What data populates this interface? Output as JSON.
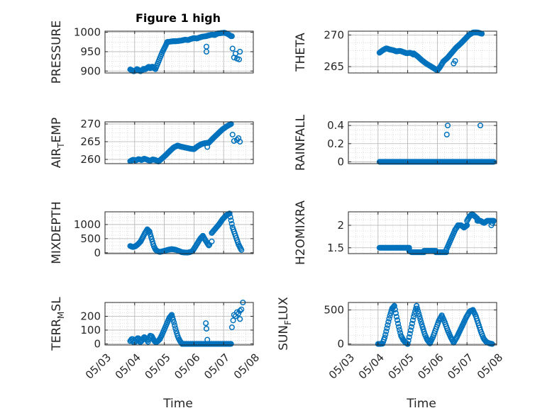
{
  "figure": {
    "title": "Figure 1 high"
  },
  "colors": {
    "marker": "#0072bd",
    "axis": "#262626",
    "grid": "#c8c8c8"
  },
  "chart_data": [
    {
      "type": "scatter",
      "id": "pressure",
      "ylabel": "PRESSURE",
      "ylabel_sub": "",
      "ylim": [
        895,
        1003
      ],
      "yticks": [
        900,
        950,
        1000
      ],
      "xlim": [
        3.0,
        8.0
      ],
      "xticks": [
        3,
        4,
        5,
        6,
        7,
        8
      ],
      "xticklabels": [
        "05/03",
        "05/04",
        "05/05",
        "05/06",
        "05/07",
        "05/08"
      ],
      "grid": true,
      "segments": [
        {
          "x0": 3.85,
          "x1": 4.7,
          "ys": [
            904,
            902,
            899,
            901,
            905,
            903,
            899,
            902,
            906,
            904,
            908,
            911,
            907,
            912,
            908,
            905
          ]
        },
        {
          "x0": 4.7,
          "x1": 5.1,
          "ys": [
            905,
            920,
            935,
            950,
            962,
            975
          ]
        },
        {
          "x0": 5.1,
          "x1": 6.8,
          "ys": [
            975,
            976,
            977,
            977,
            978,
            979,
            981,
            980,
            983,
            985,
            984,
            987,
            989,
            990,
            992,
            994,
            993,
            997
          ]
        },
        {
          "x0": 6.8,
          "x1": 7.25,
          "ys": [
            997,
            998,
            999,
            996,
            990
          ]
        }
      ],
      "points": [
        [
          6.42,
          963
        ],
        [
          6.42,
          950
        ],
        [
          7.3,
          958
        ],
        [
          7.35,
          935
        ],
        [
          7.4,
          945
        ],
        [
          7.45,
          932
        ],
        [
          7.52,
          930
        ],
        [
          7.55,
          950
        ],
        [
          7.28,
          990
        ]
      ]
    },
    {
      "type": "scatter",
      "id": "theta",
      "ylabel": "THETA",
      "ylabel_sub": "",
      "ylim": [
        264,
        270.6
      ],
      "yticks": [
        265,
        270
      ],
      "xlim": [
        3.0,
        8.0
      ],
      "xticks": [
        3,
        4,
        5,
        6,
        7,
        8
      ],
      "xticklabels": [
        "05/03",
        "05/04",
        "05/05",
        "05/06",
        "05/07",
        "05/08"
      ],
      "grid": true,
      "segments": [
        {
          "x0": 4.05,
          "x1": 5.2,
          "ys": [
            267.2,
            267.6,
            267.9,
            267.7,
            267.6,
            267.4,
            267.5,
            267.3,
            267.1,
            267.2,
            266.9
          ]
        },
        {
          "x0": 5.2,
          "x1": 5.9,
          "ys": [
            267.1,
            266.6,
            266.0,
            265.5,
            265.1,
            264.7
          ]
        },
        {
          "x0": 5.9,
          "x1": 6.2,
          "ys": [
            264.7,
            264.4,
            265.0,
            265.8
          ]
        },
        {
          "x0": 6.2,
          "x1": 7.5,
          "ys": [
            265.8,
            266.4,
            267.2,
            268.0,
            268.6,
            269.3,
            270.0,
            270.4,
            270.4,
            270.2
          ]
        }
      ],
      "points": [
        [
          6.55,
          265.5
        ],
        [
          6.6,
          265.9
        ]
      ]
    },
    {
      "type": "scatter",
      "id": "air_temp",
      "ylabel": "AIR",
      "ylabel_sub": "T",
      "ylabel_tail": "EMP",
      "ylim": [
        258.8,
        270.6
      ],
      "yticks": [
        260,
        265,
        270
      ],
      "xlim": [
        3.0,
        8.0
      ],
      "xticks": [
        3,
        4,
        5,
        6,
        7,
        8
      ],
      "xticklabels": [
        "05/03",
        "05/04",
        "05/05",
        "05/06",
        "05/07",
        "05/08"
      ],
      "grid": true,
      "segments": [
        {
          "x0": 3.85,
          "x1": 4.8,
          "ys": [
            259.5,
            259.9,
            259.7,
            260.1,
            259.8,
            260.2,
            259.9,
            259.6,
            260.0,
            259.8,
            259.4
          ]
        },
        {
          "x0": 4.8,
          "x1": 5.45,
          "ys": [
            259.4,
            260.3,
            261.3,
            262.4,
            263.4,
            263.9
          ]
        },
        {
          "x0": 5.45,
          "x1": 6.0,
          "ys": [
            263.9,
            263.6,
            263.4,
            263.2,
            263.0,
            262.9
          ]
        },
        {
          "x0": 6.0,
          "x1": 6.5,
          "ys": [
            262.9,
            263.7,
            264.3,
            264.6,
            264.7
          ]
        },
        {
          "x0": 6.5,
          "x1": 7.25,
          "ys": [
            264.7,
            266.0,
            267.2,
            268.4,
            269.3,
            270.0
          ]
        }
      ],
      "points": [
        [
          6.45,
          263.5
        ],
        [
          7.3,
          267.0
        ],
        [
          7.35,
          265.2
        ],
        [
          7.45,
          265.5
        ],
        [
          7.5,
          266.0
        ],
        [
          7.55,
          265.0
        ]
      ]
    },
    {
      "type": "scatter",
      "id": "rainfall",
      "ylabel": "RAINFALL",
      "ylabel_sub": "",
      "ylim": [
        -0.02,
        0.44
      ],
      "yticks": [
        0,
        0.2,
        0.4
      ],
      "yticklabels": [
        "0",
        "0.2",
        "0.4"
      ],
      "xlim": [
        3.0,
        8.0
      ],
      "xticks": [
        3,
        4,
        5,
        6,
        7,
        8
      ],
      "xticklabels": [
        "05/03",
        "05/04",
        "05/05",
        "05/06",
        "05/07",
        "05/08"
      ],
      "grid": true,
      "segments": [
        {
          "x0": 4.05,
          "x1": 7.9,
          "ys": [
            0,
            0,
            0,
            0,
            0,
            0,
            0,
            0,
            0,
            0,
            0,
            0,
            0,
            0,
            0,
            0,
            0,
            0,
            0,
            0,
            0,
            0,
            0,
            0,
            0,
            0,
            0,
            0,
            0,
            0,
            0,
            0,
            0,
            0,
            0,
            0,
            0,
            0,
            0,
            0,
            0,
            0,
            0,
            0,
            0,
            0,
            0,
            0,
            0,
            0
          ]
        }
      ],
      "points": [
        [
          6.32,
          0.3
        ],
        [
          6.35,
          0.4
        ],
        [
          7.45,
          0.4
        ]
      ]
    },
    {
      "type": "scatter",
      "id": "mixdepth",
      "ylabel": "MIXDEPTH",
      "ylabel_sub": "",
      "ylim": [
        -30,
        1450
      ],
      "yticks": [
        0,
        500,
        1000
      ],
      "xlim": [
        3.0,
        8.0
      ],
      "xticks": [
        3,
        4,
        5,
        6,
        7,
        8
      ],
      "xticklabels": [
        "05/03",
        "05/04",
        "05/05",
        "05/06",
        "05/07",
        "05/08"
      ],
      "grid": true,
      "segments": [
        {
          "x0": 3.85,
          "x1": 4.2,
          "ys": [
            240,
            200,
            230,
            300,
            400
          ]
        },
        {
          "x0": 4.2,
          "x1": 4.5,
          "ys": [
            400,
            550,
            700,
            830,
            750
          ]
        },
        {
          "x0": 4.5,
          "x1": 4.85,
          "ys": [
            750,
            500,
            250,
            100,
            50,
            30
          ]
        },
        {
          "x0": 4.85,
          "x1": 5.5,
          "ys": [
            30,
            60,
            100,
            130,
            110,
            60
          ]
        },
        {
          "x0": 5.5,
          "x1": 5.95,
          "ys": [
            60,
            20,
            10,
            5,
            20,
            60
          ]
        },
        {
          "x0": 5.95,
          "x1": 6.3,
          "ys": [
            60,
            200,
            350,
            500,
            600
          ]
        },
        {
          "x0": 6.3,
          "x1": 6.5,
          "ys": [
            600,
            420,
            260
          ]
        },
        {
          "x0": 6.6,
          "x1": 7.2,
          "ys": [
            700,
            850,
            1000,
            1180,
            1320,
            1390
          ]
        },
        {
          "x0": 7.2,
          "x1": 7.6,
          "ys": [
            1390,
            900,
            600,
            300,
            100
          ]
        }
      ],
      "points": [
        [
          6.6,
          400
        ],
        [
          6.52,
          280
        ]
      ]
    },
    {
      "type": "scatter",
      "id": "h2omixra",
      "ylabel": "H2OMIXRA",
      "ylabel_sub": "",
      "ylim": [
        1.37,
        2.3
      ],
      "yticks": [
        1.5,
        2
      ],
      "yticklabels": [
        "1.5",
        "2"
      ],
      "xlim": [
        3.0,
        8.0
      ],
      "xticks": [
        3,
        4,
        5,
        6,
        7,
        8
      ],
      "xticklabels": [
        "05/03",
        "05/04",
        "05/05",
        "05/06",
        "05/07",
        "05/08"
      ],
      "grid": true,
      "segments": [
        {
          "x0": 4.05,
          "x1": 5.05,
          "ys": [
            1.5,
            1.5,
            1.5,
            1.5,
            1.5,
            1.5,
            1.5,
            1.5,
            1.5,
            1.5,
            1.5,
            1.5,
            1.5
          ]
        },
        {
          "x0": 5.05,
          "x1": 5.55,
          "ys": [
            1.43,
            1.4,
            1.4,
            1.4,
            1.4,
            1.4,
            1.4
          ]
        },
        {
          "x0": 5.55,
          "x1": 5.95,
          "ys": [
            1.43,
            1.43,
            1.43,
            1.43,
            1.43,
            1.43
          ]
        },
        {
          "x0": 5.95,
          "x1": 6.3,
          "ys": [
            1.4,
            1.4,
            1.4,
            1.4,
            1.4
          ]
        },
        {
          "x0": 6.3,
          "x1": 6.7,
          "ys": [
            1.45,
            1.6,
            1.75,
            1.9,
            2.0
          ]
        },
        {
          "x0": 6.7,
          "x1": 7.0,
          "ys": [
            2.0,
            2.0,
            1.95,
            2.0
          ]
        },
        {
          "x0": 7.0,
          "x1": 7.35,
          "ys": [
            2.1,
            2.2,
            2.25,
            2.2,
            2.15
          ]
        },
        {
          "x0": 7.35,
          "x1": 7.9,
          "ys": [
            2.1,
            2.1,
            2.05,
            2.1,
            2.1,
            2.1
          ]
        }
      ],
      "points": [
        [
          7.82,
          2.0
        ],
        [
          7.86,
          2.05
        ]
      ]
    },
    {
      "type": "scatter",
      "id": "terr_msl",
      "ylabel": "TERR",
      "ylabel_sub": "M",
      "ylabel_tail": "SL",
      "ylim": [
        -8,
        300
      ],
      "yticks": [
        0,
        100,
        200
      ],
      "xlim": [
        3.0,
        8.0
      ],
      "xticks": [
        3,
        4,
        5,
        6,
        7,
        8
      ],
      "xticklabels": [
        "05/03",
        "05/04",
        "05/05",
        "05/06",
        "05/07",
        "05/08"
      ],
      "grid": true,
      "segments": [
        {
          "x0": 3.85,
          "x1": 4.85,
          "ys": [
            20,
            40,
            5,
            30,
            45,
            10,
            25,
            50,
            40,
            15,
            60,
            55,
            25,
            10,
            20,
            35
          ]
        },
        {
          "x0": 4.85,
          "x1": 5.25,
          "ys": [
            35,
            70,
            110,
            150,
            190,
            210
          ]
        },
        {
          "x0": 5.25,
          "x1": 5.6,
          "ys": [
            210,
            160,
            100,
            50,
            20,
            0
          ]
        },
        {
          "x0": 5.6,
          "x1": 7.25,
          "ys": [
            0,
            0,
            0,
            0,
            0,
            0,
            0,
            0,
            0,
            0,
            0,
            0,
            0,
            0,
            0,
            0,
            0,
            0,
            0,
            0
          ]
        }
      ],
      "points": [
        [
          6.4,
          150
        ],
        [
          6.42,
          110
        ],
        [
          6.45,
          30
        ],
        [
          7.28,
          120
        ],
        [
          7.32,
          170
        ],
        [
          7.35,
          210
        ],
        [
          7.4,
          200
        ],
        [
          7.45,
          230
        ],
        [
          7.5,
          220
        ],
        [
          7.55,
          180
        ],
        [
          7.6,
          250
        ],
        [
          7.65,
          300
        ],
        [
          7.55,
          240
        ]
      ]
    },
    {
      "type": "scatter",
      "id": "sun_flux",
      "ylabel": "SUN",
      "ylabel_sub": "F",
      "ylabel_tail": "LUX",
      "ylim": [
        -15,
        610
      ],
      "yticks": [
        0,
        500
      ],
      "xlim": [
        3.0,
        8.0
      ],
      "xticks": [
        3,
        4,
        5,
        6,
        7,
        8
      ],
      "xticklabels": [
        "05/03",
        "05/04",
        "05/05",
        "05/06",
        "05/07",
        "05/08"
      ],
      "grid": true,
      "segments": [
        {
          "x0": 4.0,
          "x1": 4.15,
          "ys": [
            0,
            0,
            5
          ]
        },
        {
          "x0": 4.15,
          "x1": 4.55,
          "ys": [
            5,
            100,
            250,
            400,
            520,
            560
          ]
        },
        {
          "x0": 4.55,
          "x1": 4.85,
          "ys": [
            560,
            400,
            250,
            120,
            60
          ]
        },
        {
          "x0": 4.85,
          "x1": 5.0,
          "ys": [
            60,
            20,
            0
          ]
        },
        {
          "x0": 5.0,
          "x1": 5.3,
          "ys": [
            0,
            200,
            400,
            560
          ]
        },
        {
          "x0": 5.3,
          "x1": 5.75,
          "ys": [
            560,
            420,
            280,
            150,
            60,
            10
          ]
        },
        {
          "x0": 5.75,
          "x1": 6.15,
          "ys": [
            10,
            100,
            220,
            340,
            420
          ]
        },
        {
          "x0": 6.15,
          "x1": 6.55,
          "ys": [
            420,
            320,
            200,
            100,
            20
          ]
        },
        {
          "x0": 6.55,
          "x1": 7.2,
          "ys": [
            20,
            100,
            200,
            300,
            400,
            480,
            500
          ]
        },
        {
          "x0": 7.2,
          "x1": 7.65,
          "ys": [
            500,
            420,
            300,
            180,
            80,
            30
          ]
        },
        {
          "x0": 7.65,
          "x1": 7.85,
          "ys": [
            30,
            10,
            0
          ]
        }
      ],
      "points": []
    }
  ],
  "bottom_labels": {
    "left": "Time",
    "right": "Time"
  }
}
